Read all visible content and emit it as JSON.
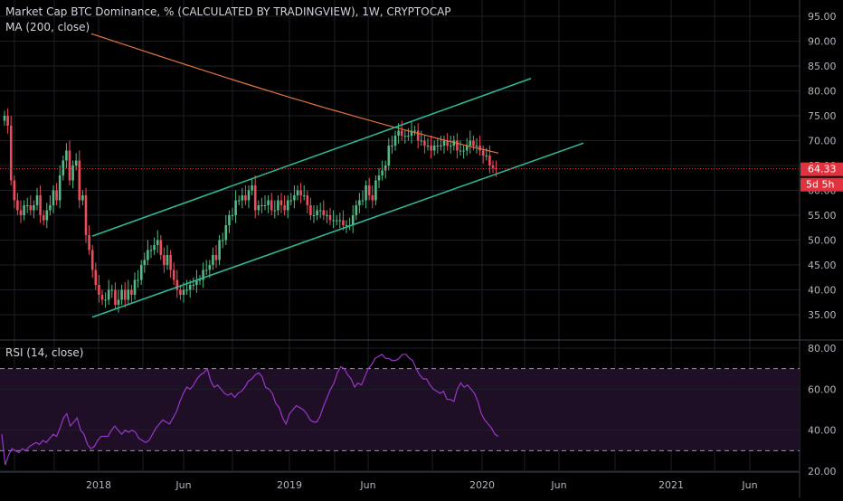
{
  "header": {
    "title": "Market Cap BTC Dominance, % (CALCULATED BY TRADINGVIEW), 1W, CRYPTOCAP",
    "ma_label": "MA (200, close)",
    "rsi_label": "RSI (14, close)"
  },
  "colors": {
    "background": "#000000",
    "grid": "#1c1f26",
    "up": "#53b987",
    "down": "#eb4d5c",
    "ma": "#e0743b",
    "channel": "#2fb595",
    "rsi": "#9a36c7",
    "rsi_band": "#1e0f27",
    "price_tag": "#e0333f"
  },
  "chart_data": [
    {
      "type": "candlestick",
      "title": "Market Cap BTC Dominance, % (CALCULATED BY TRADINGVIEW), 1W, CRYPTOCAP",
      "ylim": [
        32.5,
        97.5
      ],
      "y_ticks": [
        "35.00",
        "40.00",
        "45.00",
        "50.00",
        "55.00",
        "60.00",
        "65.00",
        "70.00",
        "75.00",
        "80.00",
        "85.00",
        "90.00",
        "95.00"
      ],
      "x_ticks": [
        "2018",
        "Jun",
        "2019",
        "Jun",
        "2020",
        "Jun",
        "2021",
        "Jun"
      ],
      "last_price": "64.33",
      "countdown": "5d 5h",
      "close": [
        75,
        73,
        62,
        58,
        56,
        55,
        57,
        57,
        56,
        57,
        59,
        55,
        54,
        56,
        57,
        60,
        58,
        63,
        66,
        68,
        62,
        65,
        66,
        58,
        59,
        51,
        48,
        44,
        41,
        39,
        38,
        38,
        40,
        40,
        37,
        38,
        40,
        38,
        40,
        39,
        42,
        42,
        45,
        46,
        48,
        48,
        49,
        50,
        47,
        45,
        47,
        44,
        42,
        40,
        39,
        40,
        40,
        41,
        41,
        42,
        42,
        44,
        44,
        45,
        47,
        46,
        50,
        50,
        53,
        55,
        55,
        58,
        58,
        59,
        58,
        60,
        61,
        56,
        57,
        57,
        57,
        58,
        56,
        56,
        58,
        57,
        56,
        58,
        58,
        59,
        60,
        59,
        59,
        57,
        55,
        55,
        56,
        56,
        55,
        55,
        54,
        54,
        54,
        54,
        53,
        53,
        53,
        55,
        57,
        58,
        58,
        61,
        59,
        58,
        62,
        63,
        64,
        65,
        69,
        69,
        71,
        72,
        71,
        71,
        71,
        72,
        72,
        70,
        70,
        69,
        69,
        68,
        69,
        69,
        69,
        70,
        69,
        69,
        70,
        68,
        68,
        68,
        69,
        70,
        69,
        69,
        68,
        67,
        67,
        65,
        64.5,
        64.3
      ],
      "ma_200": {
        "start": 91.5,
        "end": 67.5
      },
      "channel": {
        "upper": {
          "from": [
            51,
            50.8
          ],
          "to": [
            271,
            82.5
          ]
        },
        "lower": {
          "from": [
            51,
            34.5
          ],
          "to": [
            300,
            69.5
          ]
        }
      }
    },
    {
      "type": "line",
      "title": "RSI (14, close)",
      "ylim": [
        17,
        83
      ],
      "y_ticks": [
        "20.00",
        "40.00",
        "60.00",
        "80.00"
      ],
      "bands": [
        30,
        70
      ],
      "values": [
        38,
        23,
        28,
        31,
        30,
        29,
        31,
        30,
        32,
        33,
        34,
        33,
        35,
        34,
        36,
        38,
        37,
        41,
        46,
        48,
        42,
        44,
        46,
        40,
        38,
        33,
        31,
        32,
        35,
        37,
        37,
        37,
        40,
        42,
        40,
        38,
        40,
        39,
        40,
        39,
        36,
        35,
        34,
        35,
        38,
        41,
        43,
        45,
        44,
        43,
        46,
        49,
        54,
        58,
        61,
        60,
        62,
        65,
        67,
        68,
        70,
        64,
        61,
        62,
        60,
        58,
        57,
        58,
        56,
        58,
        59,
        61,
        64,
        65,
        67,
        68,
        66,
        61,
        60,
        58,
        53,
        51,
        46,
        43,
        48,
        50,
        52,
        51,
        50,
        48,
        45,
        44,
        44,
        47,
        52,
        56,
        60,
        63,
        68,
        71,
        70,
        67,
        65,
        61,
        63,
        62,
        66,
        70,
        72,
        75,
        76,
        77,
        75,
        75,
        74,
        74,
        75,
        77,
        77,
        75,
        74,
        70,
        67,
        65,
        65,
        62,
        60,
        59,
        58,
        59,
        55,
        55,
        54,
        60,
        63,
        61,
        62,
        60,
        58,
        54,
        48,
        45,
        43,
        41,
        38,
        37
      ]
    }
  ]
}
